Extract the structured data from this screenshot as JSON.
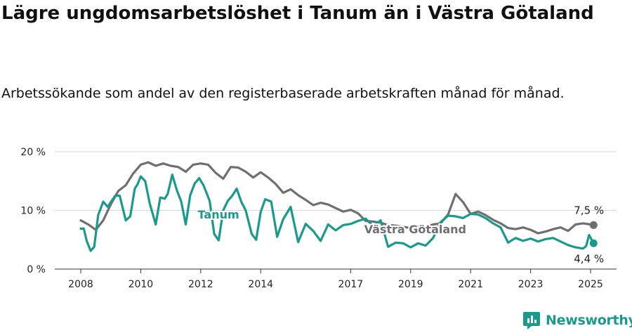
{
  "title": "Lägre ungdomsarbetslöshet i Tanum än i Västra Götaland",
  "subtitle": "Arbetssökande som andel av den registerbaserade arbetskraften månad för månad.",
  "brand": "Newsworthy",
  "chart_data": {
    "type": "line",
    "title": "Lägre ungdomsarbetslöshet i Tanum än i Västra Götaland",
    "subtitle": "Arbetssökande som andel av den registerbaserade arbetskraften månad för månad.",
    "xlabel": "",
    "ylabel": "",
    "ylim": [
      0,
      20
    ],
    "xlim": [
      2007.8,
      2025.6
    ],
    "grid": true,
    "y_ticks": [
      0,
      10,
      20
    ],
    "y_tick_labels": [
      "0 %",
      "10 %",
      "20 %"
    ],
    "x_ticks": [
      2008,
      2010,
      2012,
      2014,
      2017,
      2019,
      2021,
      2023,
      2025
    ],
    "x_tick_labels": [
      "2008",
      "2010",
      "2012",
      "2014",
      "2017",
      "2019",
      "2021",
      "2023",
      "2025"
    ],
    "series": [
      {
        "name": "Västra Götaland",
        "color": "#6e6e73",
        "end_label": "7,5 %",
        "x": [
          2008.0,
          2008.25,
          2008.5,
          2008.75,
          2009.0,
          2009.25,
          2009.5,
          2009.75,
          2010.0,
          2010.25,
          2010.5,
          2010.75,
          2011.0,
          2011.25,
          2011.5,
          2011.75,
          2012.0,
          2012.25,
          2012.5,
          2012.75,
          2013.0,
          2013.25,
          2013.5,
          2013.75,
          2014.0,
          2014.25,
          2014.5,
          2014.75,
          2015.0,
          2015.25,
          2015.5,
          2015.75,
          2016.0,
          2016.25,
          2016.5,
          2016.75,
          2017.0,
          2017.25,
          2017.5,
          2017.75,
          2018.0,
          2018.25,
          2018.5,
          2018.75,
          2019.0,
          2019.25,
          2019.5,
          2019.75,
          2020.0,
          2020.25,
          2020.5,
          2020.75,
          2021.0,
          2021.25,
          2021.5,
          2021.75,
          2022.0,
          2022.25,
          2022.5,
          2022.75,
          2023.0,
          2023.25,
          2023.5,
          2023.75,
          2024.0,
          2024.25,
          2024.5,
          2024.75,
          2025.0,
          2025.1
        ],
        "values": [
          8.3,
          7.6,
          6.7,
          8.3,
          11.0,
          13.3,
          14.3,
          16.3,
          17.8,
          18.2,
          17.6,
          18.0,
          17.6,
          17.4,
          16.6,
          17.8,
          18.0,
          17.8,
          16.4,
          15.4,
          17.4,
          17.3,
          16.6,
          15.6,
          16.5,
          15.6,
          14.5,
          13.0,
          13.6,
          12.6,
          11.8,
          10.9,
          11.3,
          11.0,
          10.4,
          9.8,
          10.1,
          9.5,
          8.2,
          8.1,
          7.9,
          7.5,
          7.4,
          7.2,
          7.0,
          7.3,
          7.2,
          7.6,
          7.8,
          9.3,
          12.8,
          11.4,
          9.4,
          9.8,
          9.2,
          8.4,
          7.8,
          7.0,
          6.8,
          7.1,
          6.7,
          6.1,
          6.4,
          6.8,
          7.1,
          6.5,
          7.6,
          7.8,
          7.6,
          7.5
        ]
      },
      {
        "name": "Tanum",
        "color": "#1a9a8c",
        "end_label": "4,4 %",
        "x": [
          2008.0,
          2008.1,
          2008.2,
          2008.33,
          2008.45,
          2008.58,
          2008.75,
          2008.9,
          2009.0,
          2009.15,
          2009.3,
          2009.5,
          2009.65,
          2009.8,
          2009.9,
          2010.0,
          2010.15,
          2010.3,
          2010.5,
          2010.65,
          2010.8,
          2010.9,
          2011.05,
          2011.2,
          2011.35,
          2011.5,
          2011.65,
          2011.8,
          2011.95,
          2012.1,
          2012.3,
          2012.45,
          2012.6,
          2012.75,
          2012.9,
          2013.05,
          2013.2,
          2013.35,
          2013.5,
          2013.7,
          2013.85,
          2014.0,
          2014.15,
          2014.35,
          2014.55,
          2014.75,
          2015.0,
          2015.25,
          2015.5,
          2015.75,
          2016.0,
          2016.25,
          2016.5,
          2016.75,
          2017.0,
          2017.25,
          2017.5,
          2017.75,
          2018.0,
          2018.25,
          2018.5,
          2018.75,
          2019.0,
          2019.25,
          2019.5,
          2019.75,
          2020.0,
          2020.25,
          2020.5,
          2020.75,
          2021.0,
          2021.25,
          2021.5,
          2021.75,
          2022.0,
          2022.25,
          2022.5,
          2022.75,
          2023.0,
          2023.25,
          2023.5,
          2023.75,
          2024.0,
          2024.25,
          2024.5,
          2024.75,
          2024.85,
          2024.95,
          2025.1
        ],
        "values": [
          6.9,
          6.9,
          4.8,
          3.1,
          3.8,
          9.2,
          11.5,
          10.6,
          11.4,
          12.5,
          12.5,
          8.3,
          9.0,
          13.7,
          14.5,
          15.8,
          15.0,
          11.2,
          7.6,
          12.2,
          12.0,
          12.8,
          16.1,
          13.5,
          11.5,
          7.6,
          12.6,
          14.6,
          15.5,
          14.2,
          11.6,
          6.0,
          4.9,
          10.0,
          11.6,
          12.5,
          13.7,
          11.5,
          10.0,
          6.0,
          5.0,
          9.7,
          11.9,
          11.5,
          5.5,
          8.5,
          10.6,
          4.6,
          7.7,
          6.5,
          4.8,
          7.6,
          6.6,
          7.5,
          7.7,
          8.2,
          8.6,
          7.3,
          8.3,
          3.8,
          4.5,
          4.4,
          3.7,
          4.4,
          4.0,
          5.3,
          8.0,
          9.1,
          9.0,
          8.7,
          9.4,
          9.3,
          8.7,
          7.8,
          7.1,
          4.5,
          5.3,
          4.8,
          5.2,
          4.7,
          5.1,
          5.3,
          4.7,
          4.1,
          3.7,
          3.5,
          3.9,
          5.8,
          4.4
        ]
      }
    ],
    "annotations": [
      {
        "text": "Tanum",
        "series": "Tanum"
      },
      {
        "text": "Västra Götaland",
        "series": "Västra Götaland"
      }
    ]
  }
}
